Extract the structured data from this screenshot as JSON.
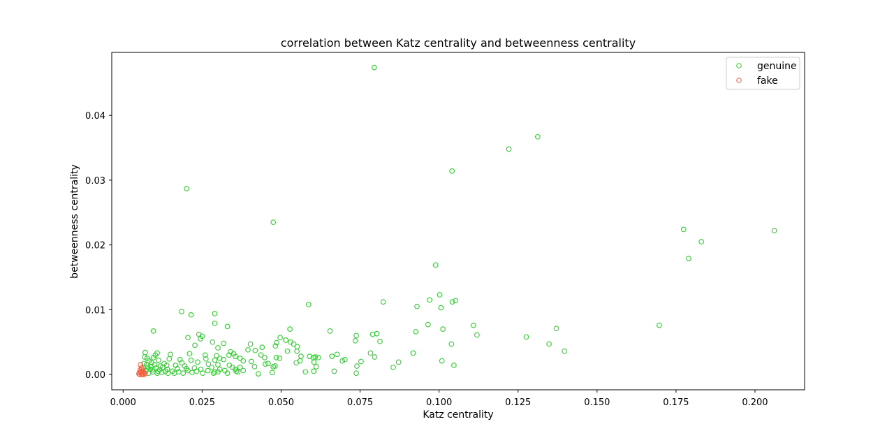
{
  "chart_data": {
    "type": "scatter",
    "title": "correlation between Katz centrality and betweenness centrality",
    "xlabel": "Katz centrality",
    "ylabel": "betweenness centrality",
    "xlim": [
      -0.0036,
      0.2157
    ],
    "ylim": [
      -0.00237,
      0.04973
    ],
    "xticks": [
      0.0,
      0.025,
      0.05,
      0.075,
      0.1,
      0.125,
      0.15,
      0.175,
      0.2
    ],
    "xtick_labels": [
      "0.000",
      "0.025",
      "0.050",
      "0.075",
      "0.100",
      "0.125",
      "0.150",
      "0.175",
      "0.200"
    ],
    "yticks": [
      0.0,
      0.01,
      0.02,
      0.03,
      0.04
    ],
    "ytick_labels": [
      "0.00",
      "0.01",
      "0.02",
      "0.03",
      "0.04"
    ],
    "grid": false,
    "legend_position": "top-right",
    "series": [
      {
        "name": "genuine",
        "color": "#32cd32",
        "marker": "hollow-circle",
        "points": [
          [
            0.0795,
            0.0474
          ],
          [
            0.1312,
            0.0367
          ],
          [
            0.1221,
            0.0348
          ],
          [
            0.1041,
            0.0314
          ],
          [
            0.0201,
            0.0287
          ],
          [
            0.0475,
            0.0235
          ],
          [
            0.2061,
            0.0222
          ],
          [
            0.1774,
            0.0224
          ],
          [
            0.183,
            0.0205
          ],
          [
            0.179,
            0.0179
          ],
          [
            0.0989,
            0.0169
          ],
          [
            0.1002,
            0.0123
          ],
          [
            0.1052,
            0.0114
          ],
          [
            0.1042,
            0.0112
          ],
          [
            0.097,
            0.0115
          ],
          [
            0.0823,
            0.0112
          ],
          [
            0.0587,
            0.0108
          ],
          [
            0.093,
            0.0105
          ],
          [
            0.1006,
            0.0103
          ],
          [
            0.0185,
            0.0097
          ],
          [
            0.0215,
            0.0092
          ],
          [
            0.029,
            0.0094
          ],
          [
            0.029,
            0.0079
          ],
          [
            0.033,
            0.0074
          ],
          [
            0.0096,
            0.0067
          ],
          [
            0.024,
            0.0062
          ],
          [
            0.025,
            0.0059
          ],
          [
            0.0245,
            0.0055
          ],
          [
            0.0205,
            0.0057
          ],
          [
            0.0227,
            0.0045
          ],
          [
            0.0283,
            0.005
          ],
          [
            0.0318,
            0.0048
          ],
          [
            0.03,
            0.0041
          ],
          [
            0.021,
            0.0032
          ],
          [
            0.026,
            0.003
          ],
          [
            0.0655,
            0.0067
          ],
          [
            0.0738,
            0.006
          ],
          [
            0.079,
            0.0062
          ],
          [
            0.0803,
            0.0063
          ],
          [
            0.0735,
            0.0052
          ],
          [
            0.0813,
            0.0051
          ],
          [
            0.0926,
            0.0066
          ],
          [
            0.0965,
            0.0077
          ],
          [
            0.1012,
            0.007
          ],
          [
            0.1109,
            0.0076
          ],
          [
            0.112,
            0.0061
          ],
          [
            0.1039,
            0.0047
          ],
          [
            0.1276,
            0.0058
          ],
          [
            0.1371,
            0.0071
          ],
          [
            0.1348,
            0.0047
          ],
          [
            0.1397,
            0.0036
          ],
          [
            0.1697,
            0.0076
          ],
          [
            0.0918,
            0.0033
          ],
          [
            0.0783,
            0.0033
          ],
          [
            0.0796,
            0.0027
          ],
          [
            0.1009,
            0.0021
          ],
          [
            0.1047,
            0.0014
          ],
          [
            0.0872,
            0.0019
          ],
          [
            0.0855,
            0.0011
          ],
          [
            0.0753,
            0.002
          ],
          [
            0.074,
            0.0013
          ],
          [
            0.0738,
            0.0002
          ],
          [
            0.0694,
            0.0021
          ],
          [
            0.0702,
            0.0023
          ],
          [
            0.0677,
            0.0031
          ],
          [
            0.0661,
            0.0028
          ],
          [
            0.0668,
            0.0005
          ],
          [
            0.0618,
            0.0026
          ],
          [
            0.0602,
            0.0026
          ],
          [
            0.0608,
            0.0027
          ],
          [
            0.059,
            0.0028
          ],
          [
            0.0604,
            0.0019
          ],
          [
            0.0611,
            0.0012
          ],
          [
            0.0603,
            0.0005
          ],
          [
            0.0577,
            0.0004
          ],
          [
            0.0563,
            0.0028
          ],
          [
            0.056,
            0.0021
          ],
          [
            0.0548,
            0.0018
          ],
          [
            0.0528,
            0.007
          ],
          [
            0.053,
            0.005
          ],
          [
            0.054,
            0.0047
          ],
          [
            0.0551,
            0.0043
          ],
          [
            0.055,
            0.0036
          ],
          [
            0.0515,
            0.0053
          ],
          [
            0.0497,
            0.0057
          ],
          [
            0.0486,
            0.0049
          ],
          [
            0.0482,
            0.0044
          ],
          [
            0.052,
            0.0036
          ],
          [
            0.0495,
            0.0025
          ],
          [
            0.0485,
            0.0026
          ],
          [
            0.0481,
            0.0013
          ],
          [
            0.0475,
            0.0012
          ],
          [
            0.0459,
            0.0017
          ],
          [
            0.0472,
            0.0003
          ],
          [
            0.0448,
            0.0026
          ],
          [
            0.045,
            0.0016
          ],
          [
            0.044,
            0.0042
          ],
          [
            0.0436,
            0.003
          ],
          [
            0.0418,
            0.0037
          ],
          [
            0.0403,
            0.0047
          ],
          [
            0.0395,
            0.0038
          ],
          [
            0.0406,
            0.002
          ],
          [
            0.0416,
            0.0012
          ],
          [
            0.0428,
            0.0001
          ],
          [
            0.038,
            0.0021
          ],
          [
            0.037,
            0.0025
          ],
          [
            0.0355,
            0.0028
          ],
          [
            0.035,
            0.0032
          ],
          [
            0.034,
            0.0035
          ],
          [
            0.0335,
            0.003
          ],
          [
            0.0318,
            0.0023
          ],
          [
            0.0336,
            0.0014
          ],
          [
            0.0355,
            0.0008
          ],
          [
            0.0363,
            0.0004
          ],
          [
            0.037,
            0.0011
          ],
          [
            0.038,
            0.0006
          ],
          [
            0.0306,
            0.0025
          ],
          [
            0.0296,
            0.0029
          ],
          [
            0.029,
            0.0022
          ],
          [
            0.03,
            0.0015
          ],
          [
            0.0306,
            0.0008
          ],
          [
            0.029,
            0.0004
          ],
          [
            0.027,
            0.0016
          ],
          [
            0.0262,
            0.0024
          ],
          [
            0.028,
            0.0011
          ],
          [
            0.0246,
            0.0008
          ],
          [
            0.0236,
            0.0019
          ],
          [
            0.0226,
            0.001
          ],
          [
            0.0215,
            0.0022
          ],
          [
            0.0205,
            0.0006
          ],
          [
            0.0195,
            0.0013
          ],
          [
            0.0186,
            0.0018
          ],
          [
            0.018,
            0.0023
          ],
          [
            0.0172,
            0.0009
          ],
          [
            0.0166,
            0.0014
          ],
          [
            0.015,
            0.0031
          ],
          [
            0.0146,
            0.0024
          ],
          [
            0.014,
            0.0008
          ],
          [
            0.013,
            0.0017
          ],
          [
            0.0125,
            0.0011
          ],
          [
            0.0112,
            0.0022
          ],
          [
            0.0108,
            0.0033
          ],
          [
            0.0102,
            0.003
          ],
          [
            0.0096,
            0.0026
          ],
          [
            0.009,
            0.0018
          ],
          [
            0.0082,
            0.0021
          ],
          [
            0.0076,
            0.0025
          ],
          [
            0.007,
            0.0034
          ],
          [
            0.0068,
            0.0027
          ],
          [
            0.0065,
            0.001
          ],
          [
            0.0072,
            0.0006
          ],
          [
            0.008,
            0.0002
          ],
          [
            0.0088,
            0.0012
          ],
          [
            0.0094,
            0.0004
          ],
          [
            0.01,
            0.0015
          ],
          [
            0.0108,
            0.0002
          ],
          [
            0.0116,
            0.0007
          ],
          [
            0.0122,
            0.0003
          ],
          [
            0.0134,
            0.0005
          ],
          [
            0.0142,
            0.0002
          ],
          [
            0.0156,
            0.0005
          ],
          [
            0.0162,
            0.0002
          ],
          [
            0.0176,
            0.0004
          ],
          [
            0.019,
            0.0002
          ],
          [
            0.02,
            0.0009
          ],
          [
            0.0218,
            0.0003
          ],
          [
            0.0232,
            0.0005
          ],
          [
            0.0252,
            0.0002
          ],
          [
            0.0268,
            0.0006
          ],
          [
            0.0286,
            0.0002
          ],
          [
            0.03,
            0.0004
          ],
          [
            0.0322,
            0.0006
          ],
          [
            0.0346,
            0.0011
          ],
          [
            0.033,
            0.0002
          ],
          [
            0.0358,
            0.0005
          ],
          [
            0.0074,
            0.0015
          ],
          [
            0.0086,
            0.0008
          ],
          [
            0.0104,
            0.001
          ],
          [
            0.0118,
            0.0013
          ],
          [
            0.0138,
            0.0014
          ],
          [
            0.0064,
            0.0003
          ],
          [
            0.0066,
            0.0017
          ],
          [
            0.0078,
            0.0011
          ],
          [
            0.0092,
            0.0007
          ],
          [
            0.011,
            0.0005
          ]
        ]
      },
      {
        "name": "fake",
        "color": "#f4613f",
        "marker": "hollow-circle",
        "points": [
          [
            0.0055,
            0.0015
          ],
          [
            0.0058,
            0.001
          ],
          [
            0.0054,
            0.0007
          ],
          [
            0.006,
            0.0005
          ],
          [
            0.0052,
            0.0003
          ],
          [
            0.0057,
            0.0002
          ],
          [
            0.0062,
            0.0001
          ],
          [
            0.005,
            0.0001
          ],
          [
            0.0066,
            0.0003
          ],
          [
            0.0053,
            0.0
          ],
          [
            0.0059,
            0.0
          ],
          [
            0.0064,
            0.0
          ],
          [
            0.007,
            0.0001
          ],
          [
            0.0056,
            0.0004
          ],
          [
            0.0061,
            0.0008
          ]
        ]
      }
    ]
  }
}
